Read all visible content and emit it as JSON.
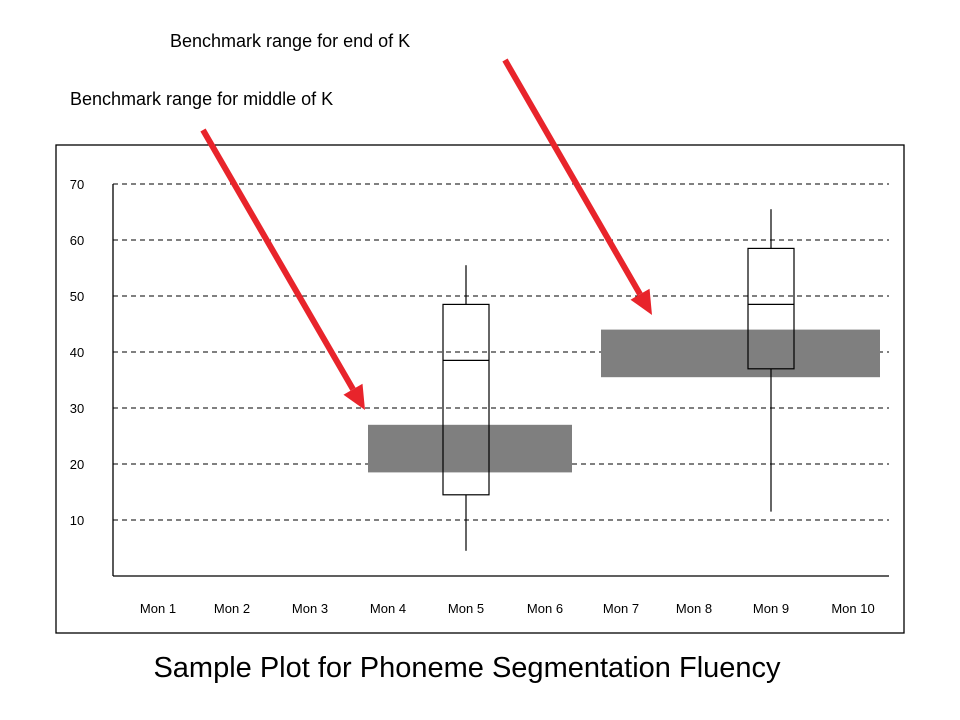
{
  "slide": {
    "title": "Sample Plot for Phoneme Segmentation Fluency"
  },
  "annotations": [
    {
      "id": "end",
      "text": "Benchmark range for end of K",
      "arrow_to_band": "end"
    },
    {
      "id": "middle",
      "text": "Benchmark range for middle of K",
      "arrow_to_band": "middle"
    }
  ],
  "colors": {
    "arrow": "#e8242b",
    "band": "#7f7f7f",
    "axis": "#000000",
    "grid": "#000000",
    "frame": "#000000"
  },
  "chart_data": {
    "type": "box",
    "categories": [
      "Mon 1",
      "Mon 2",
      "Mon 3",
      "Mon 4",
      "Mon 5",
      "Mon 6",
      "Mon 7",
      "Mon 8",
      "Mon 9",
      "Mon 10"
    ],
    "y_ticks": [
      10,
      20,
      30,
      40,
      50,
      60,
      70
    ],
    "ylim": [
      0,
      70
    ],
    "grid": "dashed-horizontal",
    "boxes": [
      {
        "category": "Mon 5",
        "min": 4.5,
        "q1": 14.5,
        "median": 38.5,
        "q3": 48.5,
        "max": 55.5
      },
      {
        "category": "Mon 9",
        "min": 11.5,
        "q1": 37,
        "median": 48.5,
        "q3": 58.5,
        "max": 65.5
      }
    ],
    "benchmark_bands": [
      {
        "id": "middle",
        "from_category": "Mon 4",
        "to_category": "Mon 6",
        "low": 18.5,
        "high": 27
      },
      {
        "id": "end",
        "from_category": "Mon 7",
        "to_category": "Mon 10",
        "low": 35.5,
        "high": 44
      }
    ]
  }
}
